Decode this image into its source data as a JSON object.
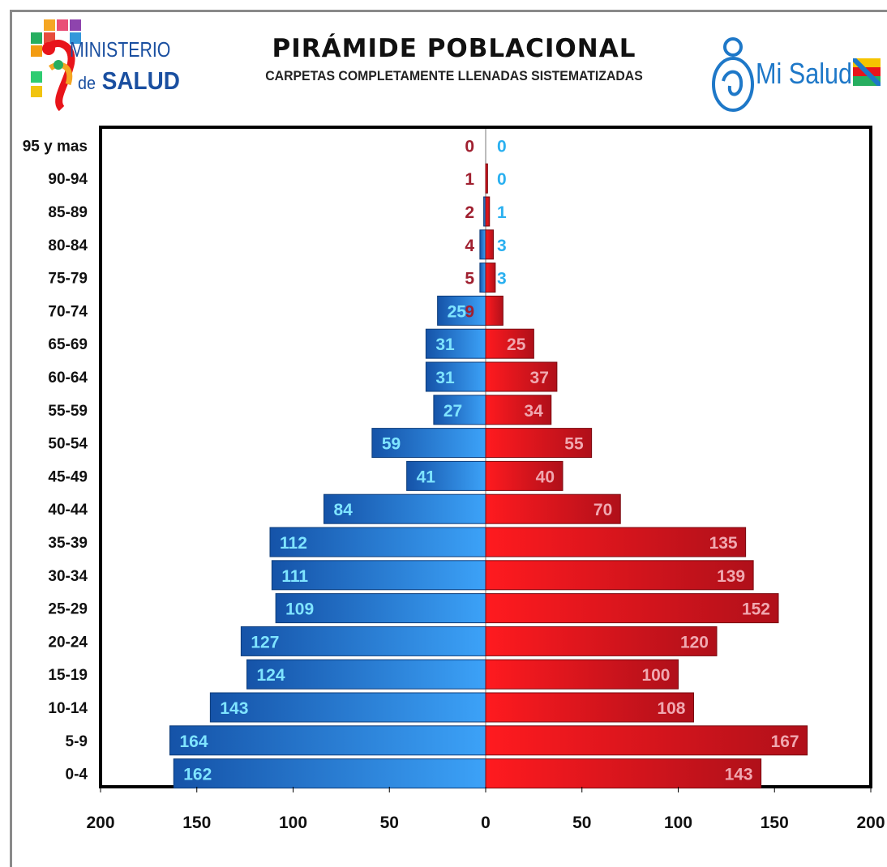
{
  "header": {
    "title": "PIRÁMIDE POBLACIONAL",
    "subtitle": "CARPETAS COMPLETAMENTE LLENADAS SISTEMATIZADAS",
    "left_logo": {
      "line1": "MINISTERIO",
      "line2_prefix": "de",
      "line2": "SALUD"
    },
    "right_logo": {
      "text": "Mi Salud"
    }
  },
  "colors": {
    "left_series": "#2f8fe6",
    "right_series": "#e8141a",
    "left_label": "#7fe4ff",
    "right_label": "#f0a8b0",
    "outer_label_left": "#2ab0f0",
    "outer_label_right": "#a02030"
  },
  "chart_data": {
    "type": "bar",
    "orientation": "horizontal-population-pyramid",
    "categories": [
      "95 y mas",
      "90-94",
      "85-89",
      "80-84",
      "75-79",
      "70-74",
      "65-69",
      "60-64",
      "55-59",
      "50-54",
      "45-49",
      "40-44",
      "35-39",
      "30-34",
      "25-29",
      "20-24",
      "15-19",
      "10-14",
      "5-9",
      "0-4"
    ],
    "series": [
      {
        "side": "left",
        "values": [
          0,
          0,
          1,
          3,
          3,
          25,
          31,
          31,
          27,
          59,
          41,
          84,
          112,
          111,
          109,
          127,
          124,
          143,
          164,
          162
        ]
      },
      {
        "side": "right",
        "values": [
          0,
          1,
          2,
          4,
          5,
          9,
          25,
          37,
          34,
          55,
          40,
          70,
          135,
          139,
          152,
          120,
          100,
          108,
          167,
          143
        ]
      }
    ],
    "xlim": [
      -200,
      200
    ],
    "x_tick_labels": [
      "200",
      "150",
      "100",
      "50",
      "0",
      "50",
      "100",
      "150",
      "200"
    ],
    "x_tick_values": [
      -200,
      -150,
      -100,
      -50,
      0,
      50,
      100,
      150,
      200
    ],
    "grid": false,
    "legend": "none"
  }
}
